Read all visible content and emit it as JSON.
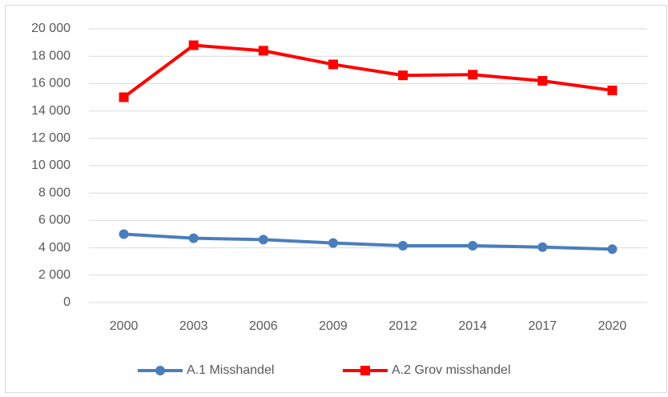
{
  "chart_data": {
    "type": "line",
    "categories": [
      "2000",
      "2003",
      "2006",
      "2009",
      "2012",
      "2014",
      "2017",
      "2020"
    ],
    "series": [
      {
        "name": "A.1 Misshandel",
        "color": "#4a7ebb",
        "marker": "circle",
        "values": [
          5000,
          4700,
          4600,
          4350,
          4150,
          4150,
          4050,
          3900
        ]
      },
      {
        "name": "A.2 Grov misshandel",
        "color": "#ff0000",
        "marker": "square",
        "values": [
          15000,
          18800,
          18400,
          17400,
          16600,
          16650,
          16200,
          15500
        ]
      }
    ],
    "ylim": [
      0,
      20000
    ],
    "yticks": [
      0,
      {
        "value": 2000,
        "label": "2 000"
      },
      {
        "value": 4000,
        "label": "4 000"
      },
      {
        "value": 6000,
        "label": "6 000"
      },
      {
        "value": 8000,
        "label": "8 000"
      },
      {
        "value": 10000,
        "label": "10 000"
      },
      {
        "value": 12000,
        "label": "12 000"
      },
      {
        "value": 14000,
        "label": "14 000"
      },
      {
        "value": 16000,
        "label": "16 000"
      },
      {
        "value": 18000,
        "label": "18 000"
      },
      {
        "value": 20000,
        "label": "20 000"
      }
    ],
    "grid": true,
    "legend": "bottom"
  }
}
